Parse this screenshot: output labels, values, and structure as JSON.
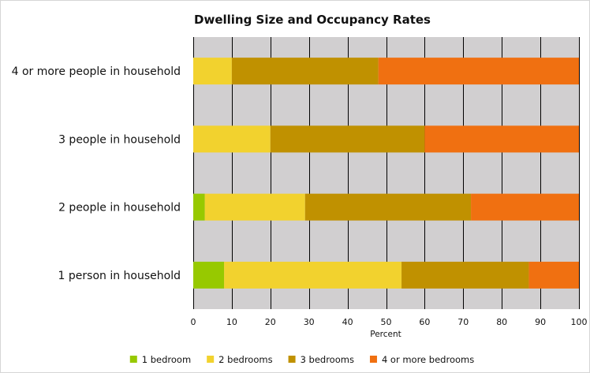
{
  "chart_data": {
    "type": "bar",
    "orientation": "horizontal",
    "stacked": true,
    "title": "Dwelling Size and Occupancy Rates",
    "xlabel": "Percent",
    "ylabel": "",
    "xlim": [
      0,
      100
    ],
    "x_ticks": [
      0,
      10,
      20,
      30,
      40,
      50,
      60,
      70,
      80,
      90,
      100
    ],
    "categories": [
      "4 or more people in household",
      "3 people in household",
      "2 people in household",
      "1 person in household"
    ],
    "series": [
      {
        "name": "1 bedroom",
        "color": "#97c900",
        "values": [
          0,
          0,
          3,
          8
        ]
      },
      {
        "name": "2 bedrooms",
        "color": "#f2d22e",
        "values": [
          10,
          20,
          26,
          46
        ]
      },
      {
        "name": "3 bedrooms",
        "color": "#c09100",
        "values": [
          38,
          40,
          43,
          33
        ]
      },
      {
        "name": "4 or more bedrooms",
        "color": "#f07011",
        "values": [
          52,
          40,
          28,
          13
        ]
      }
    ],
    "grid": true,
    "plot_background": "#d1cfd0",
    "gridline_color": "#000000",
    "legend_position": "bottom"
  }
}
